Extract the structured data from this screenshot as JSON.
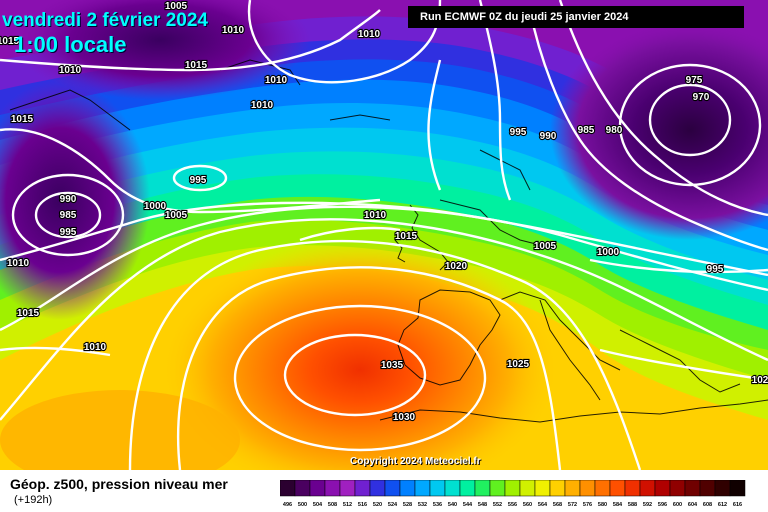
{
  "header": {
    "date": "vendredi 2 février 2024",
    "time": "1:00 locale",
    "run": "Run ECMWF 0Z du jeudi 25 janvier 2024"
  },
  "copyright": "Copyright 2024 Meteociel.fr",
  "footer": {
    "title": "Géop. z500, pression niveau mer",
    "hours": "(+192h)"
  },
  "legend": {
    "labels": [
      "496",
      "500",
      "504",
      "508",
      "512",
      "516",
      "520",
      "524",
      "528",
      "532",
      "536",
      "540",
      "544",
      "548",
      "552",
      "556",
      "560",
      "564",
      "568",
      "572",
      "576",
      "580",
      "584",
      "588",
      "592",
      "596",
      "600",
      "604",
      "608",
      "612",
      "616"
    ],
    "colors": [
      "#2b0030",
      "#4a0060",
      "#6a0090",
      "#8a10b0",
      "#a020c0",
      "#7020d0",
      "#3030e0",
      "#1050f0",
      "#0080ff",
      "#00a8ff",
      "#00c8f0",
      "#00e0d0",
      "#00f0a0",
      "#20f060",
      "#60f020",
      "#a0f000",
      "#d0f000",
      "#f0f000",
      "#ffd000",
      "#ffb000",
      "#ff9000",
      "#ff7000",
      "#ff5000",
      "#f03000",
      "#d01000",
      "#b00000",
      "#900000",
      "#700000",
      "#500000",
      "#300000",
      "#100000"
    ]
  },
  "isobars": [
    {
      "value": "1005",
      "pos": [
        176,
        9
      ]
    },
    {
      "value": "1010",
      "pos": [
        233,
        33
      ]
    },
    {
      "value": "1010",
      "pos": [
        369,
        37
      ]
    },
    {
      "value": "1015",
      "pos": [
        8,
        44
      ]
    },
    {
      "value": "1010",
      "pos": [
        70,
        73
      ]
    },
    {
      "value": "1015",
      "pos": [
        196,
        68
      ]
    },
    {
      "value": "1010",
      "pos": [
        276,
        83
      ]
    },
    {
      "value": "1010",
      "pos": [
        262,
        108
      ]
    },
    {
      "value": "1015",
      "pos": [
        22,
        122
      ]
    },
    {
      "value": "995",
      "pos": [
        198,
        183
      ]
    },
    {
      "value": "990",
      "pos": [
        68,
        202
      ]
    },
    {
      "value": "985",
      "pos": [
        68,
        218
      ]
    },
    {
      "value": "995",
      "pos": [
        68,
        235
      ]
    },
    {
      "value": "1000",
      "pos": [
        155,
        209
      ]
    },
    {
      "value": "1005",
      "pos": [
        176,
        218
      ]
    },
    {
      "value": "1010",
      "pos": [
        18,
        266
      ]
    },
    {
      "value": "1015",
      "pos": [
        28,
        316
      ]
    },
    {
      "value": "1010",
      "pos": [
        95,
        350
      ]
    },
    {
      "value": "1010",
      "pos": [
        375,
        218
      ]
    },
    {
      "value": "1015",
      "pos": [
        406,
        239
      ]
    },
    {
      "value": "1020",
      "pos": [
        456,
        269
      ]
    },
    {
      "value": "1005",
      "pos": [
        545,
        249
      ]
    },
    {
      "value": "1000",
      "pos": [
        608,
        255
      ]
    },
    {
      "value": "995",
      "pos": [
        715,
        272
      ]
    },
    {
      "value": "995",
      "pos": [
        518,
        135
      ]
    },
    {
      "value": "990",
      "pos": [
        548,
        139
      ]
    },
    {
      "value": "985",
      "pos": [
        586,
        133
      ]
    },
    {
      "value": "980",
      "pos": [
        614,
        133
      ]
    },
    {
      "value": "975",
      "pos": [
        694,
        83
      ]
    },
    {
      "value": "970",
      "pos": [
        701,
        100
      ]
    },
    {
      "value": "1035",
      "pos": [
        392,
        368
      ]
    },
    {
      "value": "1025",
      "pos": [
        518,
        367
      ]
    },
    {
      "value": "1030",
      "pos": [
        404,
        420
      ]
    },
    {
      "value": "102",
      "pos": [
        760,
        383
      ]
    }
  ]
}
